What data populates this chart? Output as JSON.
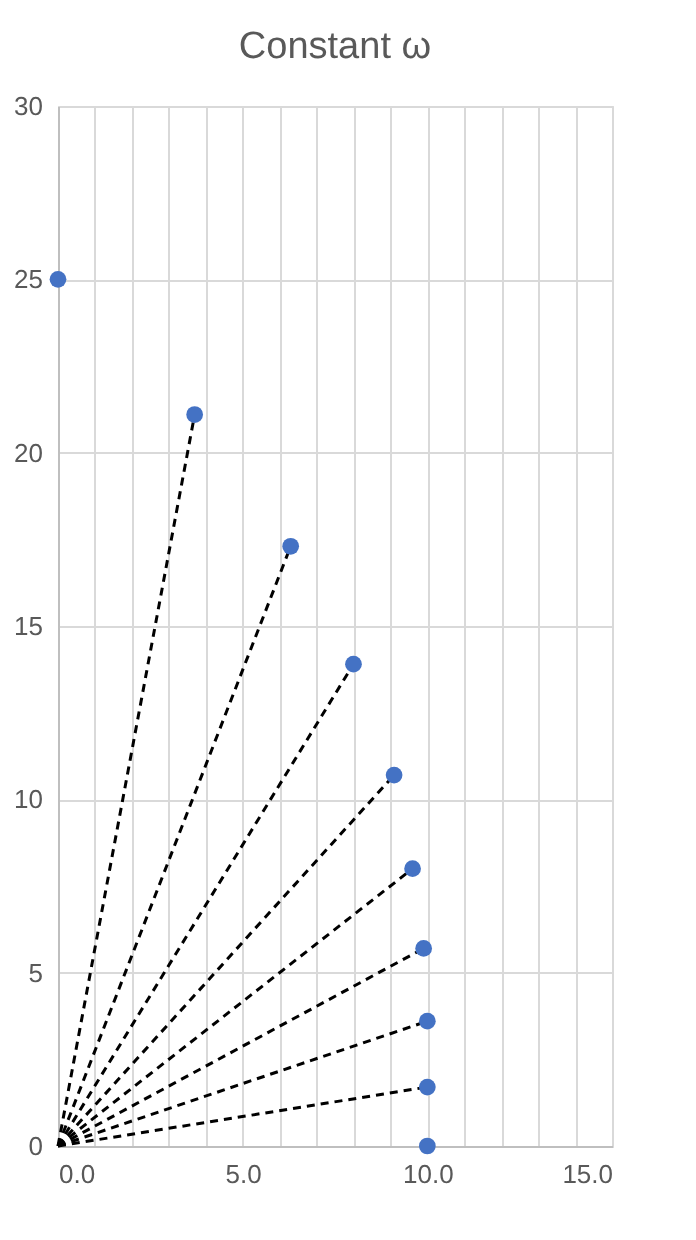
{
  "chart_data": {
    "type": "scatter",
    "title": "Constant ω",
    "xlim": [
      0,
      15
    ],
    "ylim": [
      0,
      30
    ],
    "xticks": [
      {
        "value": 0,
        "label": "0.0"
      },
      {
        "value": 1,
        "label": null
      },
      {
        "value": 2,
        "label": null
      },
      {
        "value": 3,
        "label": null
      },
      {
        "value": 4,
        "label": null
      },
      {
        "value": 5,
        "label": "5.0"
      },
      {
        "value": 6,
        "label": null
      },
      {
        "value": 7,
        "label": null
      },
      {
        "value": 8,
        "label": null
      },
      {
        "value": 9,
        "label": null
      },
      {
        "value": 10,
        "label": "10.0"
      },
      {
        "value": 11,
        "label": null
      },
      {
        "value": 12,
        "label": null
      },
      {
        "value": 13,
        "label": null
      },
      {
        "value": 14,
        "label": null
      },
      {
        "value": 15,
        "label": "15.0"
      }
    ],
    "yticks": [
      0,
      5,
      10,
      15,
      20,
      25,
      30
    ],
    "grid": true,
    "legend": false,
    "series": [
      {
        "type": "line",
        "color": "#000000",
        "line_style": "dashed",
        "marker": "none",
        "x": [
          0,
          3.7
        ],
        "values": [
          0,
          21.1
        ]
      },
      {
        "type": "line",
        "color": "#000000",
        "line_style": "dashed",
        "marker": "none",
        "x": [
          0,
          6.3
        ],
        "values": [
          0,
          17.3
        ]
      },
      {
        "type": "line",
        "color": "#000000",
        "line_style": "dashed",
        "marker": "none",
        "x": [
          0,
          8.0
        ],
        "values": [
          0,
          13.9
        ]
      },
      {
        "type": "line",
        "color": "#000000",
        "line_style": "dashed",
        "marker": "none",
        "x": [
          0,
          9.1
        ],
        "values": [
          0,
          10.7
        ]
      },
      {
        "type": "line",
        "color": "#000000",
        "line_style": "dashed",
        "marker": "none",
        "x": [
          0,
          9.6
        ],
        "values": [
          0,
          8.0
        ]
      },
      {
        "type": "line",
        "color": "#000000",
        "line_style": "dashed",
        "marker": "none",
        "x": [
          0,
          9.9
        ],
        "values": [
          0,
          5.7
        ]
      },
      {
        "type": "line",
        "color": "#000000",
        "line_style": "dashed",
        "marker": "none",
        "x": [
          0,
          10.0
        ],
        "values": [
          0,
          3.6
        ]
      },
      {
        "type": "line",
        "color": "#000000",
        "line_style": "dashed",
        "marker": "none",
        "x": [
          0,
          10.0
        ],
        "values": [
          0,
          1.7
        ]
      },
      {
        "type": "scatter",
        "color": "#4472c4",
        "marker": "circle",
        "x": [
          0,
          3.7,
          6.3,
          8.0,
          9.1,
          9.6,
          9.9,
          10.0,
          10.0,
          10.0
        ],
        "values": [
          25,
          21.1,
          17.3,
          13.9,
          10.7,
          8.0,
          5.7,
          3.6,
          1.7,
          0
        ]
      }
    ]
  }
}
